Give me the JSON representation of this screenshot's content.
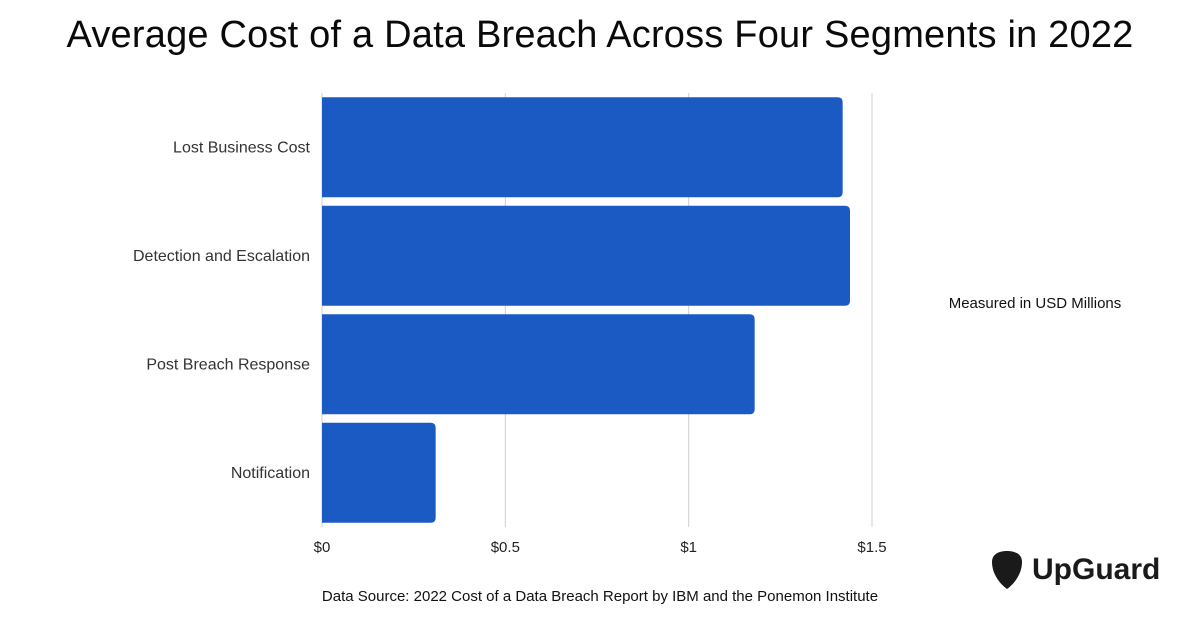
{
  "chart_data": {
    "type": "bar",
    "orientation": "horizontal",
    "title": "Average Cost of a Data Breach Across Four Segments in 2022",
    "categories": [
      "Lost Business Cost",
      "Detection and Escalation",
      "Post Breach Response",
      "Notification"
    ],
    "values": [
      1.42,
      1.44,
      1.18,
      0.31
    ],
    "xlim": [
      0,
      1.5
    ],
    "xticks": [
      0,
      0.5,
      1,
      1.5
    ],
    "xtick_labels": [
      "$0",
      "$0.5",
      "$1",
      "$1.5"
    ],
    "grid": true,
    "bar_color": "#1a5ac2",
    "unit_note": "Measured in USD Millions"
  },
  "source": "Data Source: 2022 Cost of a Data Breach Report by IBM and the Ponemon Institute",
  "logo": {
    "text": "UpGuard",
    "icon": "upguard-shield-icon"
  }
}
